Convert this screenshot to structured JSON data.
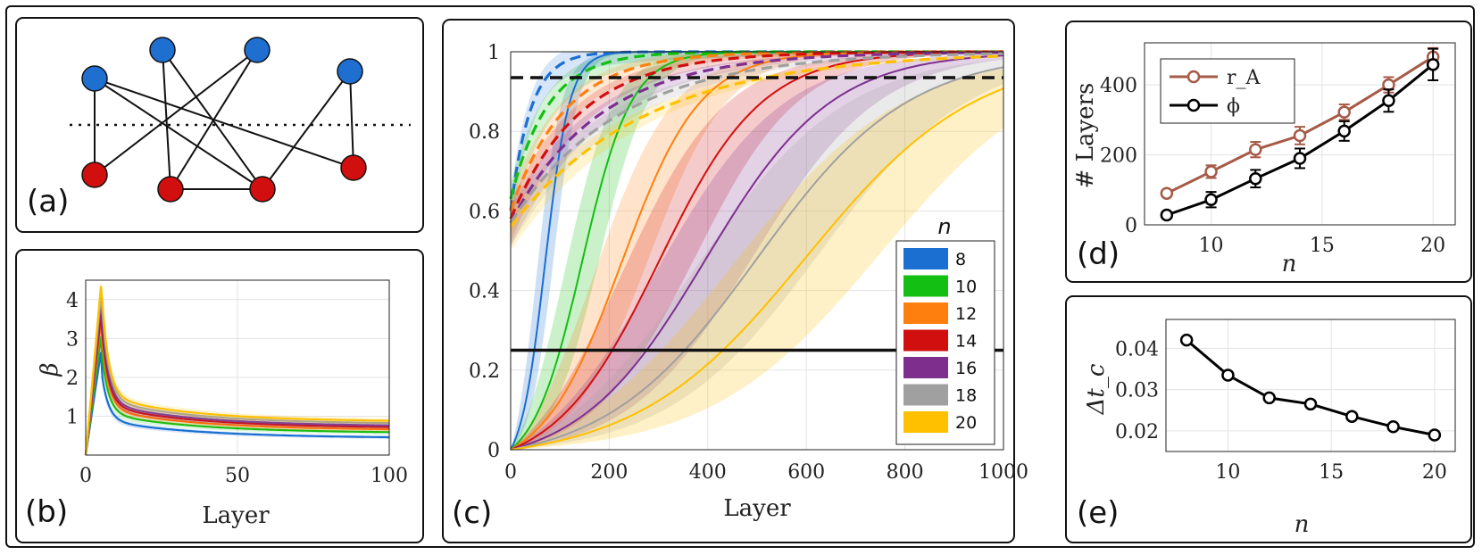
{
  "panels": {
    "a": {
      "label": "(a)"
    },
    "b": {
      "label": "(b)"
    },
    "c": {
      "label": "(c)"
    },
    "d": {
      "label": "(d)"
    },
    "e": {
      "label": "(e)"
    }
  },
  "graph": {
    "top_color": "#1f6fd1",
    "bottom_color": "#d10f0f",
    "top_nodes": [
      "1",
      "2",
      "3",
      "4"
    ],
    "bottom_nodes": [
      "5",
      "6",
      "7",
      "8"
    ],
    "edges": [
      [
        "1",
        "5"
      ],
      [
        "1",
        "7"
      ],
      [
        "1",
        "8"
      ],
      [
        "2",
        "6"
      ],
      [
        "2",
        "7"
      ],
      [
        "3",
        "5"
      ],
      [
        "3",
        "6"
      ],
      [
        "4",
        "7"
      ],
      [
        "4",
        "8"
      ],
      [
        "6",
        "7"
      ]
    ]
  },
  "chart_data": [
    {
      "id": "b",
      "type": "line",
      "xlabel": "Layer",
      "ylabel": "β",
      "xlim": [
        0,
        100
      ],
      "ylim": [
        0,
        4.5
      ],
      "xticks": [
        "0",
        "50",
        "100"
      ],
      "yticks": [
        "1",
        "2",
        "3",
        "4"
      ],
      "grid": true,
      "series": [
        {
          "n": 8,
          "color": "#1a6fd1",
          "peak": 2.65,
          "peak_layer": 5,
          "end": 0.42
        },
        {
          "n": 10,
          "color": "#12bf12",
          "peak": 3.05,
          "peak_layer": 5,
          "end": 0.55
        },
        {
          "n": 12,
          "color": "#ff7f0e",
          "peak": 3.4,
          "peak_layer": 5,
          "end": 0.62
        },
        {
          "n": 14,
          "color": "#d10f0f",
          "peak": 3.6,
          "peak_layer": 5,
          "end": 0.68
        },
        {
          "n": 16,
          "color": "#7e2f8e",
          "peak": 3.8,
          "peak_layer": 5,
          "end": 0.72
        },
        {
          "n": 18,
          "color": "#a0a0a0",
          "peak": 4.1,
          "peak_layer": 5,
          "end": 0.78
        },
        {
          "n": 20,
          "color": "#ffc000",
          "peak": 4.35,
          "peak_layer": 5,
          "end": 0.84
        }
      ]
    },
    {
      "id": "c",
      "type": "line",
      "xlabel": "Layer",
      "ylabel": "",
      "xlim": [
        0,
        1000
      ],
      "ylim": [
        0,
        1
      ],
      "xticks": [
        "0",
        "200",
        "400",
        "600",
        "800",
        "1000"
      ],
      "yticks": [
        "0",
        "0.2",
        "0.4",
        "0.6",
        "0.8",
        "1"
      ],
      "grid": true,
      "hlines": [
        {
          "y": 0.935,
          "style": "dashed"
        },
        {
          "y": 0.25,
          "style": "solid"
        }
      ],
      "legend": {
        "title": "n",
        "position": "lower-right",
        "entries": [
          "8",
          "10",
          "12",
          "14",
          "16",
          "18",
          "20"
        ]
      },
      "series": [
        {
          "name": "8",
          "color": "#1a6fd1",
          "solid_mid": 70,
          "solid_k": 0.04,
          "dash_start": 0.6,
          "dash_tau": 40
        },
        {
          "name": "10",
          "color": "#12bf12",
          "solid_mid": 145,
          "solid_k": 0.02,
          "dash_start": 0.63,
          "dash_tau": 75
        },
        {
          "name": "12",
          "color": "#ff7f0e",
          "solid_mid": 225,
          "solid_k": 0.0125,
          "dash_start": 0.6,
          "dash_tau": 110
        },
        {
          "name": "14",
          "color": "#d10f0f",
          "solid_mid": 300,
          "solid_k": 0.0095,
          "dash_start": 0.58,
          "dash_tau": 140
        },
        {
          "name": "16",
          "color": "#7e2f8e",
          "solid_mid": 395,
          "solid_k": 0.0078,
          "dash_start": 0.57,
          "dash_tau": 180
        },
        {
          "name": "18",
          "color": "#a0a0a0",
          "solid_mid": 500,
          "solid_k": 0.0065,
          "dash_start": 0.57,
          "dash_tau": 220
        },
        {
          "name": "20",
          "color": "#ffc000",
          "solid_mid": 600,
          "solid_k": 0.0058,
          "dash_start": 0.56,
          "dash_tau": 270
        }
      ]
    },
    {
      "id": "d",
      "type": "line",
      "xlabel": "n",
      "ylabel": "# Layers",
      "xlim": [
        7,
        21
      ],
      "ylim": [
        0,
        520
      ],
      "xticks": [
        "10",
        "15",
        "20"
      ],
      "yticks": [
        "0",
        "200",
        "400"
      ],
      "grid": true,
      "legend": {
        "position": "top-left",
        "entries": [
          "r_A",
          "ϕ"
        ]
      },
      "x": [
        8,
        10,
        12,
        14,
        16,
        18,
        20
      ],
      "series": [
        {
          "name": "r_A",
          "color": "#a65a48",
          "values": [
            90,
            152,
            215,
            255,
            322,
            400,
            480
          ],
          "err": [
            8,
            18,
            22,
            25,
            22,
            22,
            25
          ]
        },
        {
          "name": "ϕ",
          "color": "#000000",
          "values": [
            28,
            72,
            132,
            190,
            268,
            355,
            458
          ],
          "err": [
            8,
            22,
            25,
            28,
            28,
            32,
            45
          ]
        }
      ]
    },
    {
      "id": "e",
      "type": "line",
      "xlabel": "n",
      "ylabel": "Δt_c",
      "xlim": [
        7,
        21
      ],
      "ylim": [
        0.015,
        0.047
      ],
      "xticks": [
        "10",
        "15",
        "20"
      ],
      "yticks": [
        "0.02",
        "0.03",
        "0.04"
      ],
      "grid": true,
      "x": [
        8,
        10,
        12,
        14,
        16,
        18,
        20
      ],
      "values": [
        0.042,
        0.0335,
        0.028,
        0.0265,
        0.0235,
        0.021,
        0.019
      ]
    }
  ]
}
